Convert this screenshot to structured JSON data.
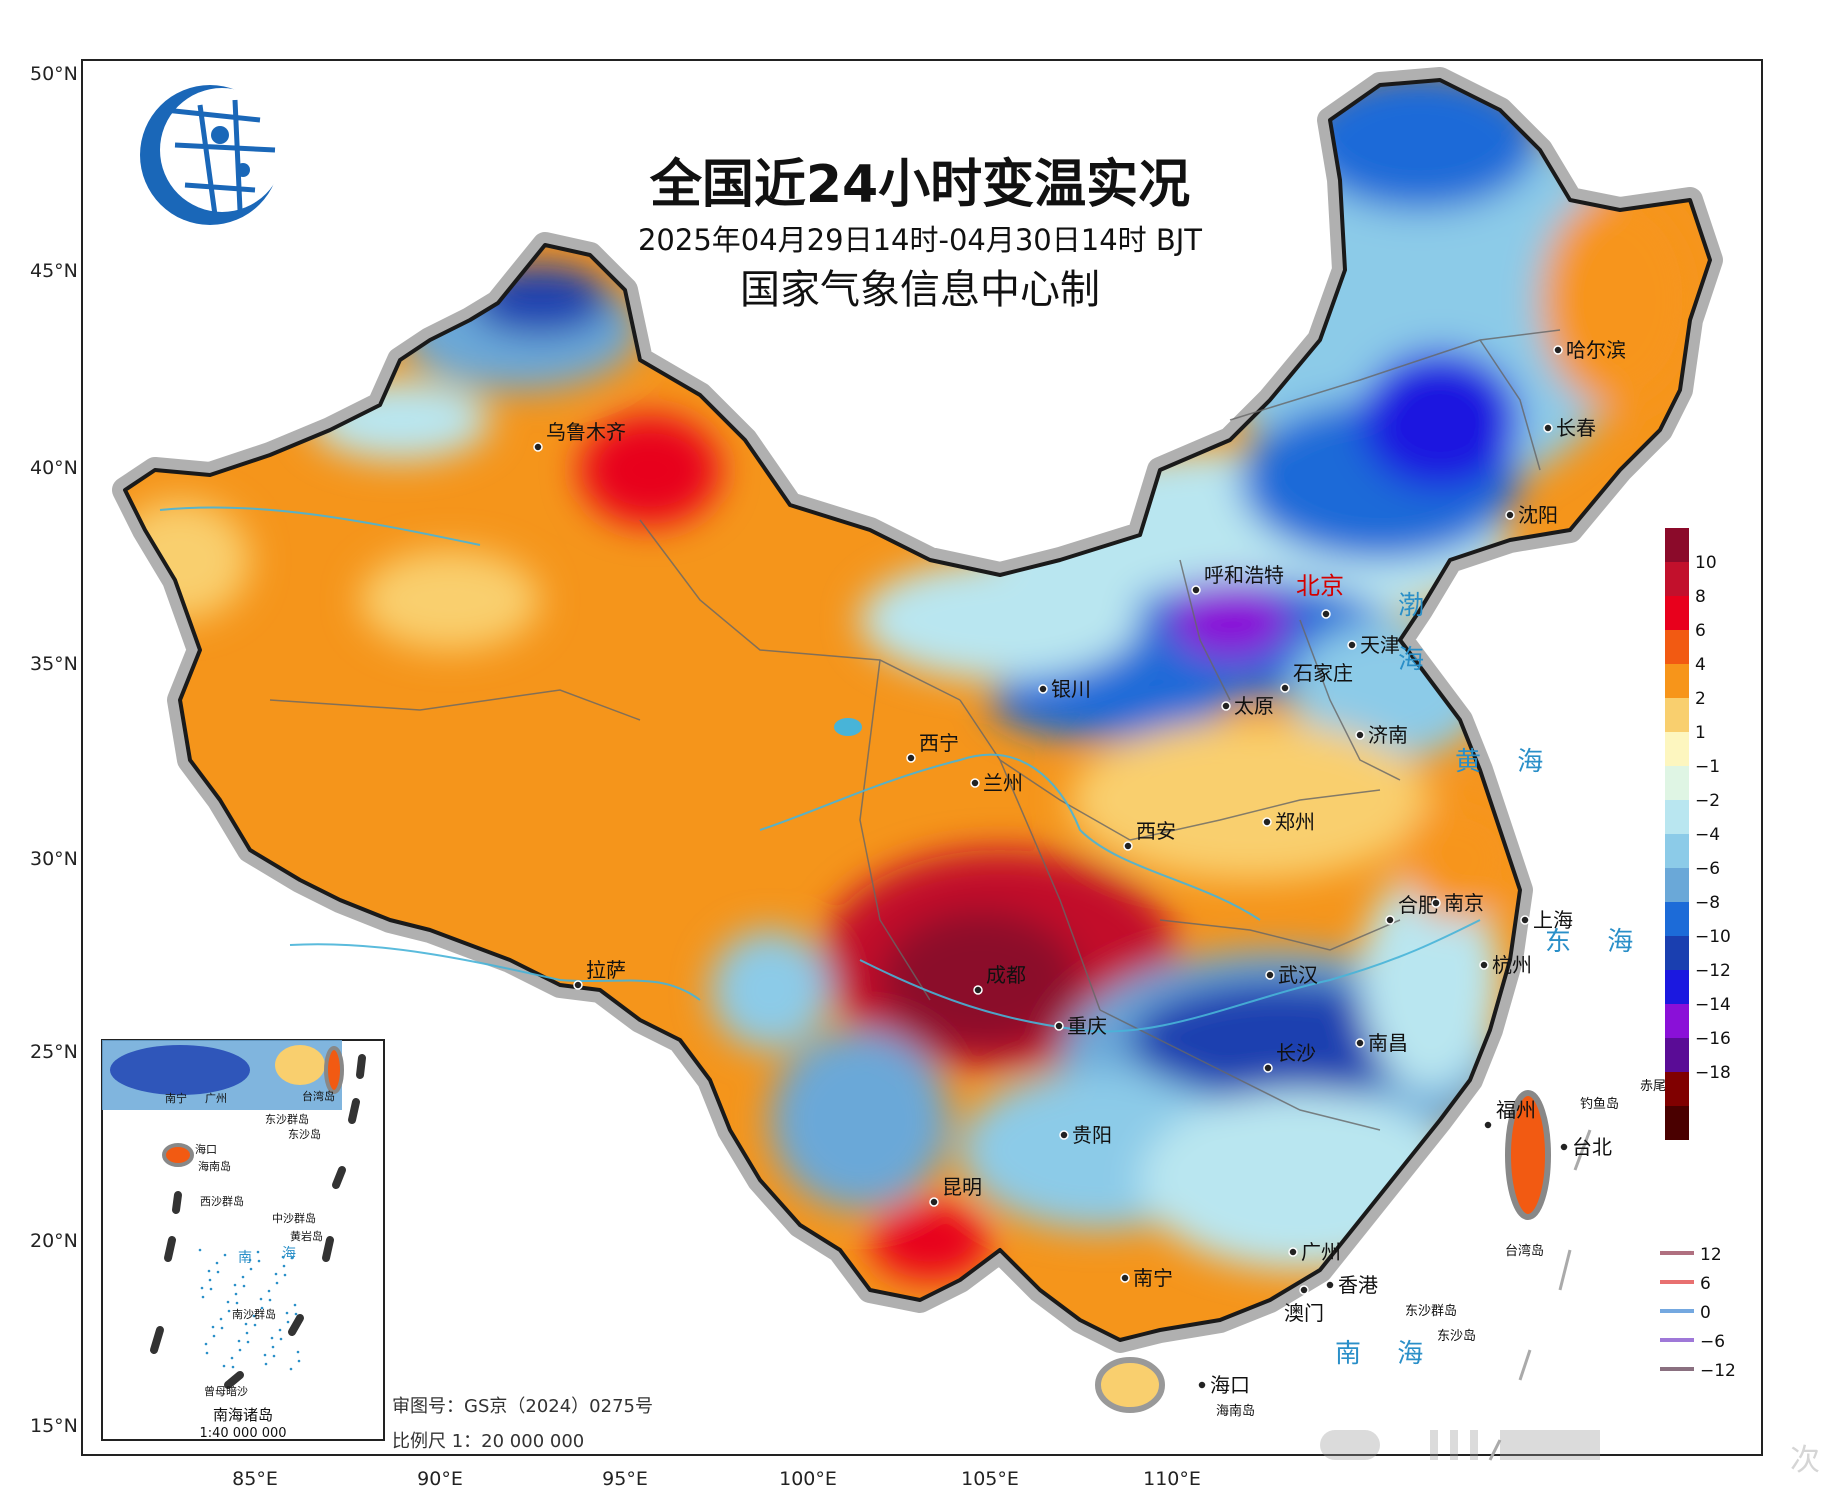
{
  "title": "全国近24小时变温实况",
  "subtitle": "2025年04月29日14时-04月30日14时 BJT",
  "producer": "国家气象信息中心制",
  "logo_icon": "globe-network-icon",
  "lat_labels": [
    "50°N",
    "45°N",
    "40°N",
    "35°N",
    "30°N",
    "25°N",
    "20°N",
    "15°N"
  ],
  "lon_labels": [
    "85°E",
    "90°E",
    "95°E",
    "100°E",
    "105°E",
    "110°E"
  ],
  "cities": [
    {
      "key": "wulumuqi",
      "name": "乌鲁木齐"
    },
    {
      "key": "haerbin",
      "name": "哈尔滨"
    },
    {
      "key": "changchun",
      "name": "长春"
    },
    {
      "key": "shenyang",
      "name": "沈阳"
    },
    {
      "key": "huhehaote",
      "name": "呼和浩特"
    },
    {
      "key": "beijing",
      "name": "北京"
    },
    {
      "key": "tianjin",
      "name": "天津"
    },
    {
      "key": "shijiazhuang",
      "name": "石家庄"
    },
    {
      "key": "yinchuan",
      "name": "银川"
    },
    {
      "key": "taiyuan",
      "name": "太原"
    },
    {
      "key": "jinan",
      "name": "济南"
    },
    {
      "key": "xining",
      "name": "西宁"
    },
    {
      "key": "lanzhou",
      "name": "兰州"
    },
    {
      "key": "xian",
      "name": "西安"
    },
    {
      "key": "zhengzhou",
      "name": "郑州"
    },
    {
      "key": "hefei",
      "name": "合肥"
    },
    {
      "key": "nanjing",
      "name": "南京"
    },
    {
      "key": "shanghai",
      "name": "上海"
    },
    {
      "key": "lasa",
      "name": "拉萨"
    },
    {
      "key": "chengdu",
      "name": "成都"
    },
    {
      "key": "wuhan",
      "name": "武汉"
    },
    {
      "key": "hangzhou",
      "name": "杭州"
    },
    {
      "key": "chongqing",
      "name": "重庆"
    },
    {
      "key": "changsha",
      "name": "长沙"
    },
    {
      "key": "nanchang",
      "name": "南昌"
    },
    {
      "key": "guiyang",
      "name": "贵阳"
    },
    {
      "key": "fuzhou",
      "name": "福州"
    },
    {
      "key": "taibei",
      "name": "台北"
    },
    {
      "key": "kunming",
      "name": "昆明"
    },
    {
      "key": "guangzhou",
      "name": "广州"
    },
    {
      "key": "nanning",
      "name": "南宁"
    },
    {
      "key": "xianggang",
      "name": "香港"
    },
    {
      "key": "aomen",
      "name": "澳门"
    },
    {
      "key": "haikou",
      "name": "海口"
    },
    {
      "key": "hainandao",
      "name": "海南岛"
    },
    {
      "key": "taiwandao",
      "name": "台湾岛"
    },
    {
      "key": "diaoyudao",
      "name": "钓鱼岛"
    },
    {
      "key": "chiweiyu",
      "name": "赤尾屿"
    },
    {
      "key": "dongsha",
      "name": "东沙群岛"
    },
    {
      "key": "dongshadao",
      "name": "东沙岛"
    }
  ],
  "seas": [
    {
      "key": "bo1",
      "name": "渤"
    },
    {
      "key": "bo2",
      "name": "海"
    },
    {
      "key": "huanghai",
      "name": "黄 海"
    },
    {
      "key": "donghai",
      "name": "东 海"
    },
    {
      "key": "nanhai",
      "name": "南 海"
    }
  ],
  "colorbar": {
    "labels": [
      "10",
      "8",
      "6",
      "4",
      "2",
      "1",
      "−1",
      "−2",
      "−4",
      "−6",
      "−8",
      "−10",
      "−12",
      "−14",
      "−16",
      "−18"
    ],
    "colors": [
      "#8b0a2a",
      "#c2102c",
      "#e8001c",
      "#f25a12",
      "#f7951a",
      "#f9cf6e",
      "#fdf6bf",
      "#dff5e4",
      "#b9e6f0",
      "#8ccbe8",
      "#6aa8d8",
      "#1c6bd8",
      "#1a3fb0",
      "#1b18e0",
      "#8a10d8",
      "#5a0c96",
      "#800000",
      "#4a0000"
    ]
  },
  "contour_legend": [
    {
      "label": "12",
      "color": "#b07080"
    },
    {
      "label": "6",
      "color": "#e87070"
    },
    {
      "label": "0",
      "color": "#74a8e0"
    },
    {
      "label": "−6",
      "color": "#9f78d8"
    },
    {
      "label": "−12",
      "color": "#8a7080"
    }
  ],
  "inset": {
    "title": "南海诸岛",
    "scale": "1:40 000 000",
    "labels": [
      "南宁",
      "广州",
      "台湾岛",
      "海口",
      "海南岛",
      "东沙群岛",
      "东沙岛",
      "西沙群岛",
      "中沙群岛",
      "黄岩岛",
      "南",
      "海",
      "南沙群岛",
      "曾母暗沙"
    ]
  },
  "review_number": "审图号：GS京（2024）0275号",
  "scale_text": "比例尺 1：20 000 000",
  "watermark_text": "次"
}
